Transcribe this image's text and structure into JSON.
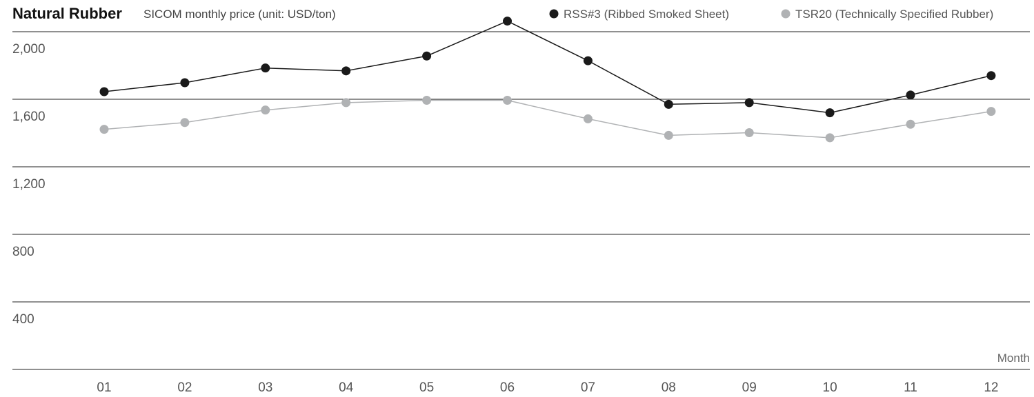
{
  "chart_data": {
    "type": "line",
    "title": "Natural Rubber",
    "subtitle": "SICOM monthly price (unit: USD/ton)",
    "xlabel": "Month",
    "ylabel": "",
    "categories": [
      "01",
      "02",
      "03",
      "04",
      "05",
      "06",
      "07",
      "08",
      "09",
      "10",
      "11",
      "12"
    ],
    "yticks": [
      "2,000",
      "1,600",
      "1,200",
      "800",
      "400"
    ],
    "ytick_values": [
      2000,
      1600,
      1200,
      800,
      400
    ],
    "ylim": [
      0,
      2100
    ],
    "grid": true,
    "legend_position": "top-right",
    "series": [
      {
        "name": "RSS#3 (Ribbed Smoked Sheet)",
        "color": "#1a1a1a",
        "values": [
          1645,
          1698,
          1785,
          1768,
          1856,
          2063,
          1828,
          1570,
          1580,
          1520,
          1625,
          1740
        ]
      },
      {
        "name": "TSR20 (Technically Specified Rubber)",
        "color": "#b0b2b4",
        "values": [
          1422,
          1462,
          1536,
          1580,
          1594,
          1594,
          1484,
          1386,
          1402,
          1372,
          1452,
          1528
        ]
      }
    ]
  }
}
